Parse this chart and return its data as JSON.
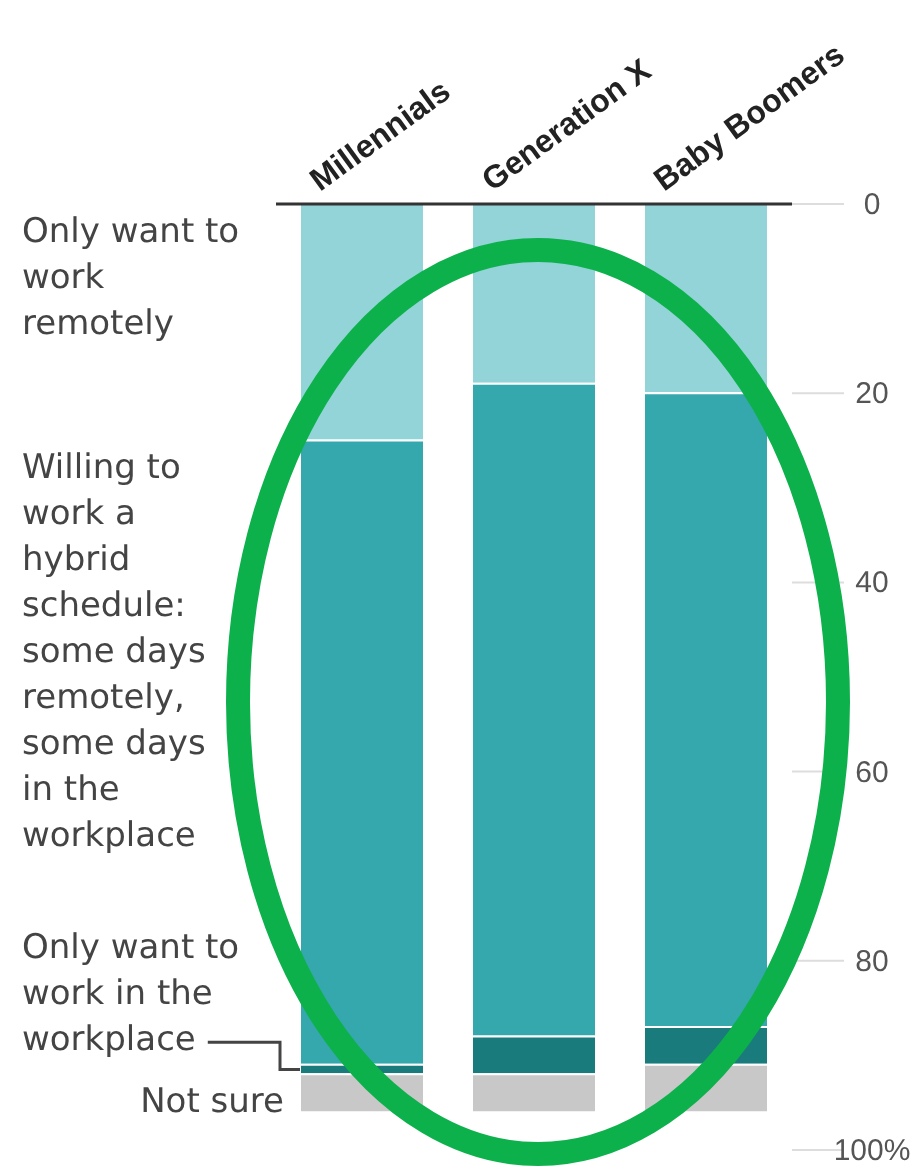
{
  "chart_data": {
    "type": "bar",
    "categories": [
      "Millennials",
      "Generation X",
      "Baby Boomers"
    ],
    "series": [
      {
        "name": "Only want to work remotely",
        "color": "#92d4d8",
        "values": [
          25,
          19,
          20
        ]
      },
      {
        "name": "Willing to work a hybrid schedule: some days remotely, some days in the workplace",
        "color": "#34a8ad",
        "values": [
          66,
          69,
          67
        ]
      },
      {
        "name": "Only want to work in the workplace",
        "color": "#1a7b7d",
        "values": [
          1,
          4,
          4
        ]
      },
      {
        "name": "Not sure",
        "color": "#c9c8c9",
        "values": [
          4,
          4,
          5
        ]
      }
    ],
    "stacked": true,
    "ylim": [
      100,
      0
    ],
    "yticks": [
      0,
      20,
      40,
      60,
      80,
      {
        "value": 100,
        "label": "100%"
      }
    ],
    "legend": "left"
  }
}
